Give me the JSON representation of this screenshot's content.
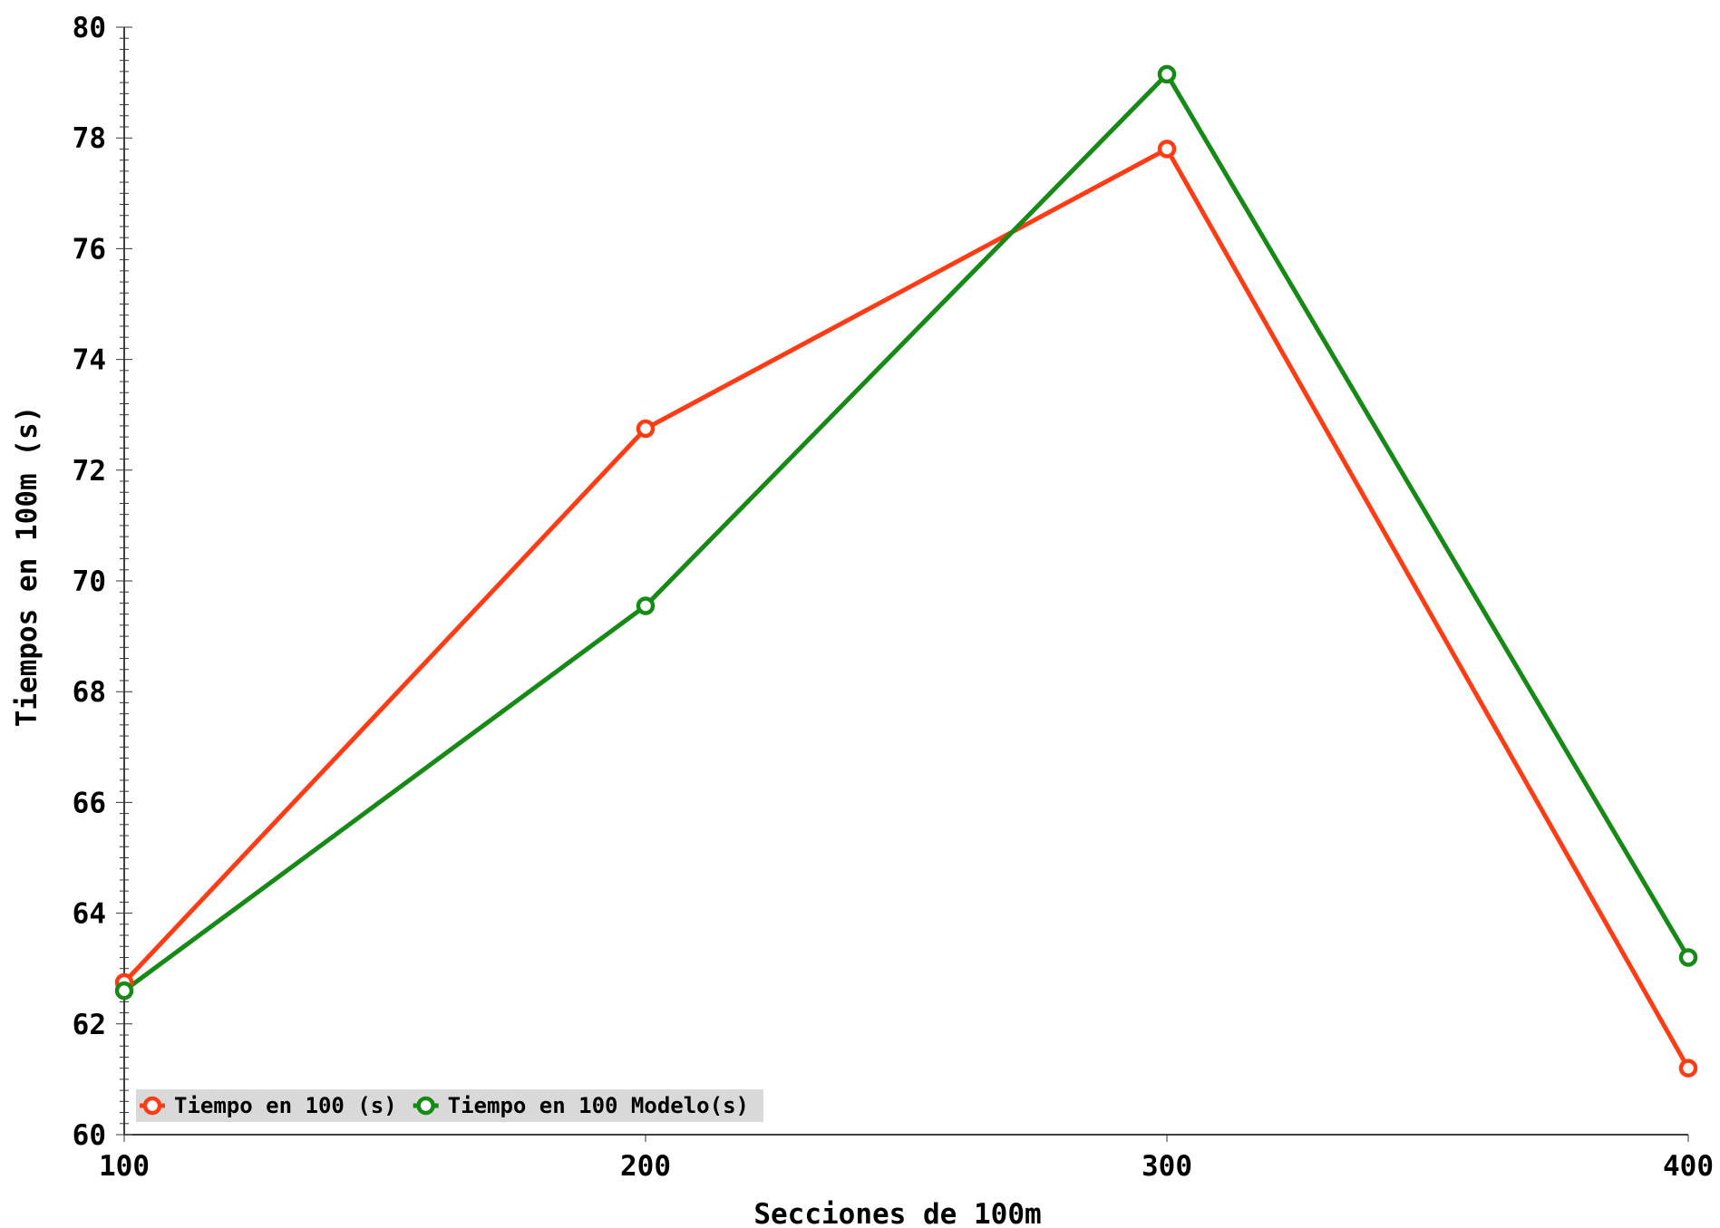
{
  "chart_data": {
    "type": "line",
    "title": "",
    "xlabel": "Secciones de 100m",
    "ylabel": "Tiempos en 100m (s)",
    "x": [
      100,
      200,
      300,
      400
    ],
    "xticks": [
      "100",
      "200",
      "300",
      "400"
    ],
    "yticks": [
      "60",
      "62",
      "64",
      "66",
      "68",
      "70",
      "72",
      "74",
      "76",
      "78",
      "80"
    ],
    "xlim": [
      100,
      400
    ],
    "ylim": [
      60,
      80
    ],
    "grid": false,
    "legend_position": "bottom-left",
    "series": [
      {
        "name": "Tiempo en 100 (s)",
        "color": "#ff3c14",
        "values": [
          62.75,
          72.75,
          77.8,
          61.2
        ]
      },
      {
        "name": "Tiempo en 100 Modelo(s)",
        "color": "#158a15",
        "values": [
          62.6,
          69.55,
          79.15,
          63.2
        ]
      }
    ]
  }
}
